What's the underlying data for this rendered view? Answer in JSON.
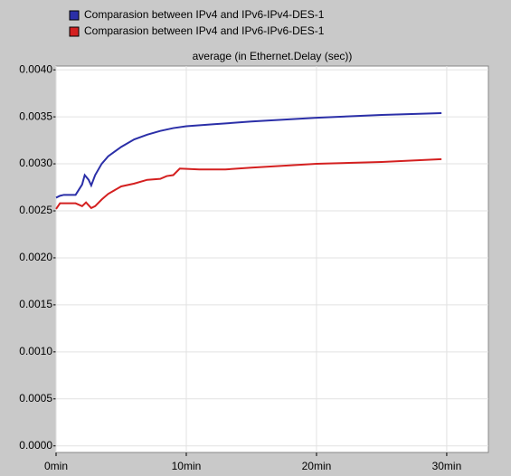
{
  "chart_data": {
    "type": "line",
    "title": "average (in Ethernet.Delay (sec))",
    "series": [
      {
        "name": "Comparasion between IPv4 and IPv6-IPv4-DES-1",
        "color": "#2b2fa8",
        "x": [
          0,
          0.3,
          0.6,
          1.5,
          2,
          2.2,
          2.5,
          2.7,
          3,
          3.5,
          4,
          5,
          6,
          7,
          8,
          9,
          10,
          12,
          15,
          20,
          25,
          29.6
        ],
        "values": [
          0.00264,
          0.00266,
          0.00267,
          0.00267,
          0.00278,
          0.00288,
          0.00283,
          0.00277,
          0.00288,
          0.003,
          0.00308,
          0.00318,
          0.00326,
          0.00331,
          0.00335,
          0.00338,
          0.0034,
          0.00342,
          0.00345,
          0.00349,
          0.00352,
          0.00354
        ]
      },
      {
        "name": "Comparasion between IPv4 and IPv6-IPv6-DES-1",
        "color": "#d42020",
        "x": [
          0,
          0.3,
          1.5,
          2,
          2.3,
          2.7,
          3,
          3.5,
          4,
          5,
          6,
          7,
          8,
          8.5,
          9,
          9.5,
          11,
          13,
          15,
          20,
          25,
          29.6
        ],
        "values": [
          0.00252,
          0.00258,
          0.00258,
          0.00255,
          0.00259,
          0.00253,
          0.00255,
          0.00262,
          0.00268,
          0.00276,
          0.00279,
          0.00283,
          0.00284,
          0.00287,
          0.00288,
          0.00295,
          0.00294,
          0.00294,
          0.00296,
          0.003,
          0.00302,
          0.00305
        ]
      }
    ],
    "xlim": [
      0,
      33.2
    ],
    "xticks": [
      {
        "value": 0,
        "label": "0min"
      },
      {
        "value": 10,
        "label": "10min"
      },
      {
        "value": 20,
        "label": "20min"
      },
      {
        "value": 30,
        "label": "30min"
      }
    ],
    "ylim": [
      -7e-05,
      0.00404
    ],
    "yticks": [
      {
        "value": 0,
        "label": "0.0000"
      },
      {
        "value": 0.0005,
        "label": "0.0005"
      },
      {
        "value": 0.001,
        "label": "0.0010"
      },
      {
        "value": 0.0015,
        "label": "0.0015"
      },
      {
        "value": 0.002,
        "label": "0.0020"
      },
      {
        "value": 0.0025,
        "label": "0.0025"
      },
      {
        "value": 0.003,
        "label": "0.0030"
      },
      {
        "value": 0.0035,
        "label": "0.0035"
      },
      {
        "value": 0.004,
        "label": "0.0040"
      }
    ],
    "grid": true
  }
}
